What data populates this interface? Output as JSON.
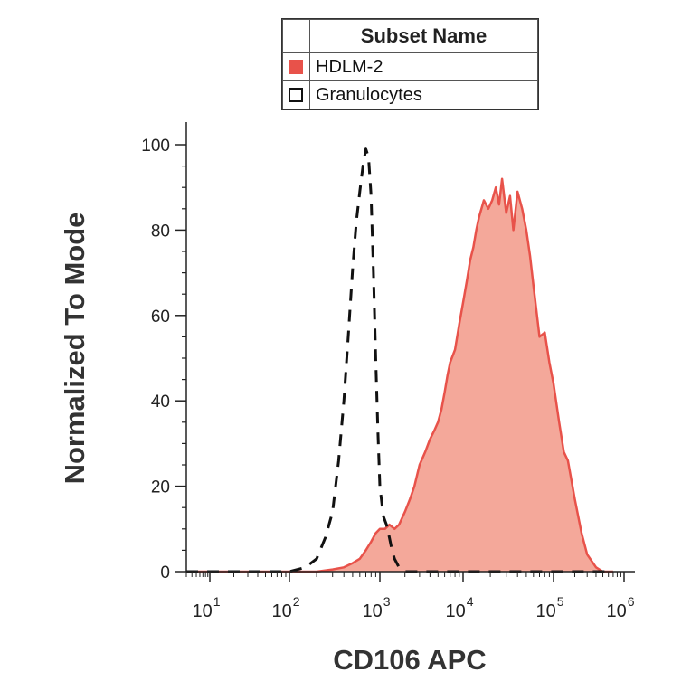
{
  "legend": {
    "header": "Subset Name",
    "items": [
      {
        "label": "HDLM-2",
        "fill": "#f4a89a",
        "stroke": "#e8524a",
        "style": "filled"
      },
      {
        "label": "Granulocytes",
        "fill": "none",
        "stroke": "#111111",
        "style": "dashed"
      }
    ]
  },
  "chart_data": {
    "type": "area",
    "xlabel": "CD106 APC",
    "ylabel": "Normalized To Mode",
    "x_scale": "log",
    "xlim": [
      10,
      1000000
    ],
    "ylim": [
      0,
      100
    ],
    "y_ticks": [
      0,
      20,
      40,
      60,
      80,
      100
    ],
    "x_tick_base": "10",
    "x_tick_exponents": [
      "1",
      "2",
      "3",
      "4",
      "5",
      "6"
    ],
    "x_tick_values": [
      10,
      100,
      1000,
      10000,
      100000,
      1000000
    ],
    "grid": false,
    "legend_position": "top-center",
    "colors": {
      "hdlm_fill": "#f4a89a",
      "hdlm_line": "#e8524a",
      "granulocytes_line": "#111111"
    },
    "series": [
      {
        "name": "HDLM-2",
        "style": "filled",
        "x": [
          3,
          30,
          100,
          200,
          300,
          400,
          500,
          600,
          700,
          800,
          900,
          1000,
          1150,
          1300,
          1500,
          1700,
          2000,
          2300,
          2600,
          3000,
          3500,
          4000,
          4500,
          5000,
          5500,
          6000,
          6500,
          7000,
          8000,
          9000,
          10000,
          11000,
          12000,
          13000,
          14000,
          15000,
          17000,
          19000,
          21000,
          23000,
          25000,
          27000,
          30000,
          33000,
          36000,
          40000,
          45000,
          50000,
          55000,
          60000,
          70000,
          80000,
          90000,
          100000,
          120000,
          140000,
          160000,
          200000,
          250000,
          300000,
          400000,
          500000,
          700000
        ],
        "y": [
          0,
          0,
          0,
          0,
          0.5,
          1,
          2,
          3,
          5,
          7,
          9,
          10,
          10,
          11,
          10,
          11,
          14,
          17,
          20,
          25,
          28,
          31,
          33,
          35,
          38,
          42,
          46,
          49,
          52,
          58,
          63,
          68,
          73,
          76,
          80,
          83,
          87,
          85,
          87,
          90,
          86,
          92,
          84,
          88,
          80,
          89,
          85,
          80,
          74,
          67,
          55,
          56,
          49,
          44,
          35,
          28,
          26,
          17,
          9,
          4,
          1,
          0,
          0
        ]
      },
      {
        "name": "Granulocytes",
        "style": "dashed",
        "x": [
          3,
          50,
          100,
          150,
          200,
          250,
          300,
          350,
          400,
          450,
          500,
          550,
          600,
          650,
          700,
          750,
          800,
          850,
          900,
          950,
          1000,
          1100,
          1200,
          1300,
          1400,
          1500,
          1700,
          2000,
          2500,
          3000,
          5000,
          100000,
          700000
        ],
        "y": [
          0,
          0,
          0,
          1,
          3,
          8,
          14,
          26,
          40,
          56,
          71,
          82,
          89,
          95,
          99,
          97,
          88,
          70,
          50,
          33,
          20,
          13,
          11,
          8,
          5,
          3,
          1,
          0,
          0,
          0,
          0,
          0,
          0
        ]
      }
    ]
  }
}
